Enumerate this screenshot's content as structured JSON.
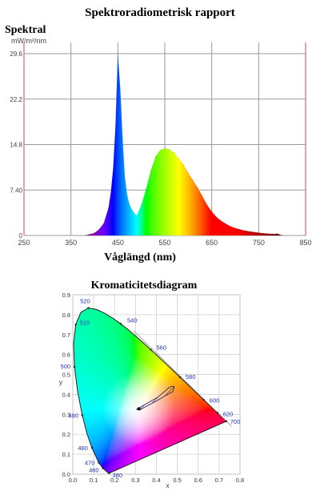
{
  "report_title": "Spektroradiometrisk rapport",
  "chart_data": [
    {
      "type": "area",
      "title": "",
      "ylabel": "Spektral",
      "unit": "mW/m²/nm",
      "xlabel": "Våglängd (nm)",
      "xlim": [
        250,
        850
      ],
      "ylim": [
        0,
        29.6
      ],
      "x_ticks": [
        "250",
        "350",
        "450",
        "550",
        "650",
        "750",
        "850"
      ],
      "y_ticks": [
        "0",
        "7.40",
        "14.8",
        "22.2",
        "29.6"
      ],
      "grid": true,
      "x": [
        380,
        400,
        410,
        420,
        430,
        435,
        440,
        445,
        450,
        455,
        460,
        465,
        470,
        475,
        480,
        490,
        500,
        510,
        520,
        530,
        540,
        550,
        560,
        570,
        580,
        590,
        600,
        610,
        620,
        630,
        640,
        650,
        660,
        670,
        680,
        690,
        700,
        720,
        740,
        760,
        780,
        790,
        800
      ],
      "values": [
        0,
        0.4,
        1.0,
        2.0,
        4.5,
        7,
        11,
        18,
        29.6,
        24,
        16,
        9.5,
        6.5,
        5,
        4.2,
        3.2,
        5,
        7.5,
        10.5,
        12.8,
        13.9,
        14.2,
        14.0,
        13.5,
        12.5,
        11.5,
        10.2,
        9.0,
        7.8,
        6.4,
        5.0,
        3.9,
        3.0,
        2.4,
        1.9,
        1.5,
        1.2,
        0.8,
        0.55,
        0.35,
        0.25,
        0.3,
        0
      ]
    },
    {
      "type": "scatter",
      "title": "Kromaticitetsdiagram",
      "xlabel": "x",
      "ylabel": "y",
      "xlim": [
        0,
        0.8
      ],
      "ylim": [
        0,
        0.9
      ],
      "x_ticks": [
        "0.0",
        "0.1",
        "0.2",
        "0.3",
        "0.4",
        "0.5",
        "0.6",
        "0.7",
        "0.8"
      ],
      "y_ticks": [
        "0.0",
        "0.1",
        "0.2",
        "0.3",
        "0.4",
        "0.5",
        "0.6",
        "0.7",
        "0.8",
        "0.9"
      ],
      "grid": true,
      "locus": [
        {
          "nm": "380",
          "x": 0.1741,
          "y": 0.005
        },
        {
          "x": 0.1738,
          "y": 0.0049
        },
        {
          "x": 0.1726,
          "y": 0.0048
        },
        {
          "x": 0.1689,
          "y": 0.0069
        },
        {
          "x": 0.1644,
          "y": 0.0109
        },
        {
          "nm": "460",
          "x": 0.144,
          "y": 0.0297
        },
        {
          "nm": "470",
          "x": 0.1241,
          "y": 0.0578
        },
        {
          "nm": "480",
          "x": 0.0913,
          "y": 0.1327
        },
        {
          "x": 0.0687,
          "y": 0.2007
        },
        {
          "nm": "490",
          "x": 0.0454,
          "y": 0.295
        },
        {
          "x": 0.0235,
          "y": 0.4127
        },
        {
          "nm": "500",
          "x": 0.0082,
          "y": 0.5384
        },
        {
          "x": 0.0039,
          "y": 0.6548
        },
        {
          "nm": "510",
          "x": 0.0139,
          "y": 0.7502
        },
        {
          "x": 0.0389,
          "y": 0.812
        },
        {
          "nm": "520",
          "x": 0.0743,
          "y": 0.8338
        },
        {
          "x": 0.1142,
          "y": 0.8262
        },
        {
          "x": 0.1547,
          "y": 0.8059
        },
        {
          "x": 0.1929,
          "y": 0.7816
        },
        {
          "nm": "540",
          "x": 0.2296,
          "y": 0.7543
        },
        {
          "x": 0.2658,
          "y": 0.7243
        },
        {
          "x": 0.3016,
          "y": 0.6923
        },
        {
          "x": 0.3373,
          "y": 0.6589
        },
        {
          "nm": "560",
          "x": 0.3731,
          "y": 0.6245
        },
        {
          "x": 0.4087,
          "y": 0.5896
        },
        {
          "x": 0.4441,
          "y": 0.5547
        },
        {
          "x": 0.4788,
          "y": 0.5202
        },
        {
          "nm": "580",
          "x": 0.5125,
          "y": 0.4866
        },
        {
          "x": 0.5448,
          "y": 0.4544
        },
        {
          "x": 0.5752,
          "y": 0.4242
        },
        {
          "nm": "600",
          "x": 0.627,
          "y": 0.3725
        },
        {
          "nm": "620",
          "x": 0.6915,
          "y": 0.3083
        },
        {
          "x": 0.714,
          "y": 0.2859
        },
        {
          "nm": "700",
          "x": 0.7347,
          "y": 0.2653
        }
      ],
      "locus_labels": [
        "520",
        "540",
        "560",
        "580",
        "600",
        "620",
        "700",
        "500",
        "490",
        "480",
        "470",
        "460",
        "380"
      ],
      "white_point": {
        "x": 0.3127,
        "y": 0.329
      },
      "color_region": [
        {
          "x": 0.305,
          "y": 0.325
        },
        {
          "x": 0.355,
          "y": 0.355
        },
        {
          "x": 0.405,
          "y": 0.385
        },
        {
          "x": 0.44,
          "y": 0.415
        },
        {
          "x": 0.455,
          "y": 0.43
        },
        {
          "x": 0.47,
          "y": 0.44
        },
        {
          "x": 0.485,
          "y": 0.44
        },
        {
          "x": 0.48,
          "y": 0.415
        },
        {
          "x": 0.445,
          "y": 0.395
        },
        {
          "x": 0.405,
          "y": 0.37
        },
        {
          "x": 0.36,
          "y": 0.345
        },
        {
          "x": 0.32,
          "y": 0.322
        }
      ],
      "measured_point": {
        "x": 0.316,
        "y": 0.328
      }
    }
  ]
}
